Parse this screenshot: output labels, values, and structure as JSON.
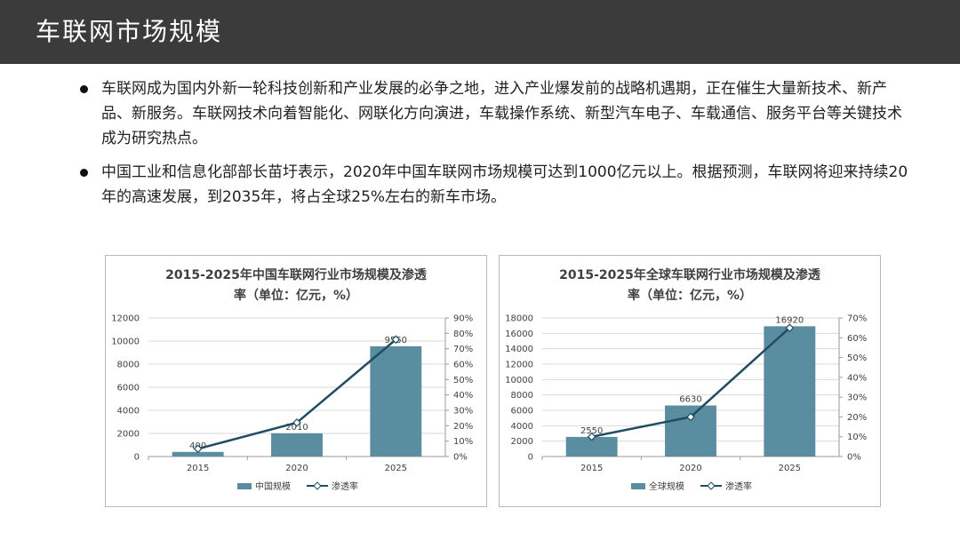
{
  "header": {
    "title": "车联网市场规模"
  },
  "bullets": [
    "车联网成为国内外新一轮科技创新和产业发展的必争之地，进入产业爆发前的战略机遇期，正在催生大量新技术、新产品、新服务。车联网技术向着智能化、网联化方向演进，车载操作系统、新型汽车电子、车载通信、服务平台等关键技术成为研究热点。",
    "中国工业和信息化部部长苗圩表示，2020年中国车联网市场规模可达到1000亿元以上。根据预测，车联网将迎来持续20年的高速发展，到2035年，将占全球25%左右的新车市场。"
  ],
  "colors": {
    "bar": "#5b8da1",
    "line": "#1f4e63",
    "title_bar": "#3b3b3b"
  },
  "chart_data": [
    {
      "type": "bar",
      "title_lines": [
        "2015-2025年中国车联网行业市场规模及渗透",
        "率（单位：亿元，%）"
      ],
      "categories": [
        "2015",
        "2020",
        "2025"
      ],
      "series": [
        {
          "name": "中国规模",
          "kind": "bar",
          "axis": "left",
          "values": [
            400,
            2010,
            9550
          ],
          "labels": [
            "400",
            "2010",
            "9550"
          ]
        },
        {
          "name": "渗透率",
          "kind": "line",
          "axis": "right",
          "values": [
            5,
            22,
            76
          ]
        }
      ],
      "ylim_left": [
        0,
        12000
      ],
      "yticks_left": [
        "0",
        "2000",
        "4000",
        "6000",
        "8000",
        "10000",
        "12000"
      ],
      "ylim_right": [
        0,
        90
      ],
      "yticks_right": [
        "0%",
        "10%",
        "20%",
        "30%",
        "40%",
        "50%",
        "60%",
        "70%",
        "80%",
        "90%"
      ],
      "legend": "bottom"
    },
    {
      "type": "bar",
      "title_lines": [
        "2015-2025年全球车联网行业市场规模及渗透",
        "率（单位：亿元，%）"
      ],
      "categories": [
        "2015",
        "2020",
        "2025"
      ],
      "series": [
        {
          "name": "全球规模",
          "kind": "bar",
          "axis": "left",
          "values": [
            2550,
            6630,
            16920
          ],
          "labels": [
            "2550",
            "6630",
            "16920"
          ]
        },
        {
          "name": "渗透率",
          "kind": "line",
          "axis": "right",
          "values": [
            10,
            20,
            65
          ]
        }
      ],
      "ylim_left": [
        0,
        18000
      ],
      "yticks_left": [
        "0",
        "2000",
        "4000",
        "6000",
        "8000",
        "10000",
        "12000",
        "14000",
        "16000",
        "18000"
      ],
      "ylim_right": [
        0,
        70
      ],
      "yticks_right": [
        "0%",
        "10%",
        "20%",
        "30%",
        "40%",
        "50%",
        "60%",
        "70%"
      ],
      "legend": "bottom"
    }
  ]
}
